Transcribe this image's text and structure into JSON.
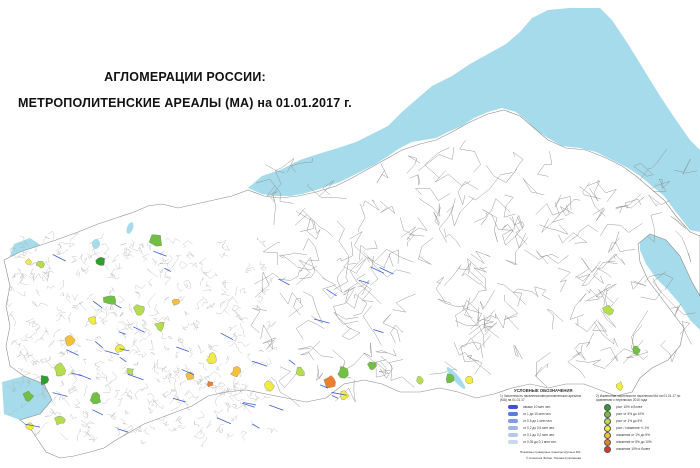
{
  "map": {
    "title_line1": "АГЛОМЕРАЦИИ РОССИИ:",
    "title_line2": "МЕТРОПОЛИТЕНСКИЕ АРЕАЛЫ (МА) на 01.01.2017 г.",
    "colors": {
      "sea": "#a5dbea",
      "land": "#ffffff",
      "boundary": "#8c8c8c",
      "dense_boundary": "#b0b0b0",
      "lake": "#a5dbea"
    }
  },
  "legend": {
    "heading": "УСЛОВНЫЕ ОБОЗНАЧЕНИЯ",
    "col1_title": "1) Численность населения метрополитенских ареалов (МА) на 01.01.17",
    "col2_title": "2) Изменение численности населения МА на 01.01.17 по сравнению с переписью 2010 года",
    "population_classes": [
      {
        "label": "свыше 10 млн чел.",
        "color": "#3d4fd6"
      },
      {
        "label": "от 1 до 10 млн чел.",
        "color": "#5c7ad8"
      },
      {
        "label": "от 0,5 до 1 млн чел.",
        "color": "#7f9be0"
      },
      {
        "label": "от 0,2 до 0,5 млн чел.",
        "color": "#9fb5e6"
      },
      {
        "label": "от 0,1 до 0,2 млн чел.",
        "color": "#b6c8ec"
      },
      {
        "label": "от 0,05 до 0,1 млн чел.",
        "color": "#cad7f0"
      }
    ],
    "dynamics_classes": [
      {
        "label": "рост 10% и более",
        "color": "#2e9e2e"
      },
      {
        "label": "рост от 5% до 10%",
        "color": "#72c043"
      },
      {
        "label": "рост от 1% до 5%",
        "color": "#b5de4f"
      },
      {
        "label": "рост / снижение +/-1%",
        "color": "#f1ec3f"
      },
      {
        "label": "снижение от 1% до 5%",
        "color": "#f6c13a"
      },
      {
        "label": "снижение от 5% до 10%",
        "color": "#ef7f2c"
      },
      {
        "label": "снижение 10% и более",
        "color": "#d63a2b"
      }
    ],
    "footer_note": "Показаны примерные границы крупных МА",
    "credit": "© Алексеев Фобин, Лихова Куприянова"
  }
}
